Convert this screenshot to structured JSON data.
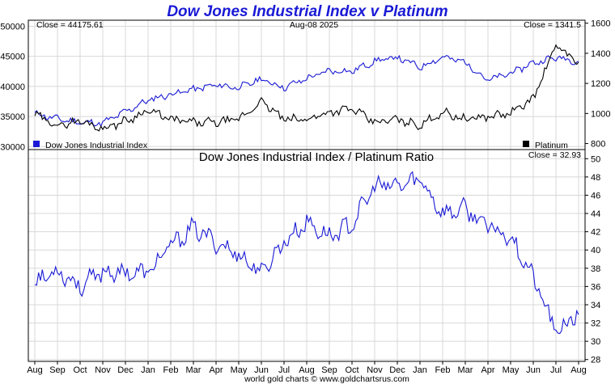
{
  "chart_data": {
    "title": "Dow Jones Industrial Index v Platinum",
    "date_label": "Aug-08  2025",
    "footer": "world gold charts © www.goldchartsrus.com",
    "x_tick_labels": [
      "Aug",
      "Sep",
      "Oct",
      "Nov",
      "Dec",
      "Jan",
      "Feb",
      "Mar",
      "Apr",
      "May",
      "Jun",
      "Jul",
      "Aug",
      "Sep",
      "Oct",
      "Nov",
      "Dec",
      "Jan",
      "Feb",
      "Mar",
      "Apr",
      "May",
      "Jun",
      "Jul",
      "Aug"
    ],
    "top": {
      "type": "line",
      "close_left": "Close = 44175.61",
      "close_right": "Close = 1341.5",
      "legend_left": "Dow Jones Industrial Index",
      "legend_right": "Platinum",
      "left_axis": {
        "ticks": [
          30000,
          35000,
          40000,
          45000,
          50000
        ],
        "tick_labels": [
          "30000",
          "35000",
          "40000",
          "45000",
          "50000"
        ],
        "ylim": [
          29500,
          51000
        ]
      },
      "right_axis": {
        "ticks": [
          800,
          1000,
          1200,
          1400,
          1600
        ],
        "tick_labels": [
          "800",
          "1000",
          "1200",
          "1400",
          "1600"
        ],
        "ylim": [
          760,
          1620
        ]
      },
      "series": [
        {
          "name": "Dow Jones Industrial Index",
          "axis": "left",
          "color": "#1a1ad6",
          "x": [
            0,
            1,
            2,
            3,
            4,
            5,
            6,
            7,
            8,
            9,
            10,
            11,
            12,
            13,
            14,
            15,
            16,
            17,
            18,
            19,
            20,
            21,
            22,
            23,
            24
          ],
          "values": [
            35500,
            34600,
            34000,
            33900,
            35800,
            37700,
            38700,
            39500,
            40200,
            39800,
            41200,
            39800,
            41300,
            42600,
            42500,
            44200,
            44800,
            43200,
            44900,
            44000,
            41000,
            42200,
            43900,
            44800,
            44175
          ]
        },
        {
          "name": "Platinum",
          "axis": "right",
          "color": "#000000",
          "x": [
            0,
            1,
            2,
            3,
            4,
            5,
            6,
            7,
            8,
            9,
            10,
            11,
            12,
            13,
            14,
            15,
            16,
            17,
            18,
            19,
            20,
            21,
            22,
            23,
            24
          ],
          "values": [
            990,
            920,
            950,
            900,
            950,
            1020,
            960,
            940,
            940,
            960,
            1080,
            960,
            960,
            1010,
            1030,
            940,
            960,
            920,
            1010,
            960,
            980,
            1000,
            1100,
            1450,
            1341.5
          ]
        }
      ]
    },
    "bottom": {
      "type": "line",
      "title": "Dow Jones Industrial Index  /  Platinum Ratio",
      "close_right": "Close = 32.93",
      "right_axis": {
        "ticks": [
          28,
          30,
          32,
          34,
          36,
          38,
          40,
          42,
          44,
          46,
          48,
          50
        ],
        "tick_labels": [
          "28",
          "30",
          "32",
          "34",
          "36",
          "38",
          "40",
          "42",
          "44",
          "46",
          "48",
          "50"
        ],
        "ylim": [
          27.8,
          51
        ]
      },
      "series": [
        {
          "name": "Ratio",
          "color": "#1a1ad6",
          "x": [
            0,
            1,
            2,
            3,
            4,
            5,
            6,
            7,
            8,
            9,
            10,
            11,
            12,
            13,
            14,
            15,
            16,
            17,
            18,
            19,
            20,
            21,
            22,
            23,
            24
          ],
          "values": [
            36.5,
            37.8,
            36.0,
            37.6,
            37.5,
            37.5,
            40.5,
            42.4,
            40.8,
            39.5,
            37.5,
            40.9,
            43.0,
            41.5,
            42.8,
            47.0,
            47.0,
            47.8,
            44.0,
            44.5,
            42.5,
            41.5,
            37.0,
            31.0,
            32.93
          ]
        }
      ]
    }
  }
}
